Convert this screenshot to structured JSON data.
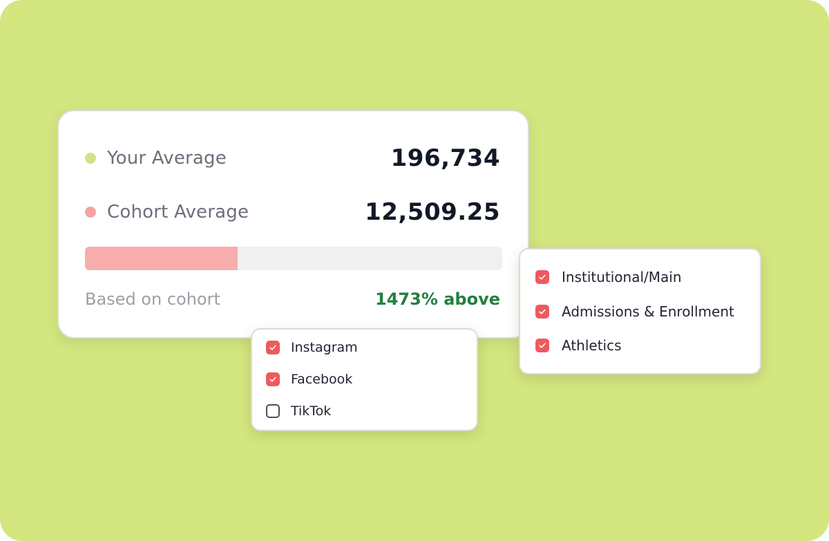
{
  "comparison": {
    "your_average": {
      "label": "Your Average",
      "value": "196,734",
      "dot_color": "#cfe38f"
    },
    "cohort_average": {
      "label": "Cohort Average",
      "value": "12,509.25",
      "dot_color": "#f6a3a3"
    },
    "progress": {
      "fraction": 0.366,
      "fill_color": "#f8adad",
      "track_color": "#eff0f1"
    },
    "footer_label": "Based on cohort",
    "delta_text": "1473% above",
    "delta_color": "#22803f"
  },
  "platform_filter": {
    "items": [
      {
        "label": "Instagram",
        "checked": true,
        "icon": "checkmark-icon"
      },
      {
        "label": "Facebook",
        "checked": true,
        "icon": "checkmark-icon"
      },
      {
        "label": "TikTok",
        "checked": false,
        "icon": ""
      }
    ]
  },
  "account_filter": {
    "items": [
      {
        "label": "Institutional/Main",
        "checked": true,
        "icon": "checkmark-icon"
      },
      {
        "label": "Admissions & Enrollment",
        "checked": true,
        "icon": "checkmark-icon"
      },
      {
        "label": "Athletics",
        "checked": true,
        "icon": "checkmark-icon"
      }
    ]
  },
  "colors": {
    "background": "#d3e67f",
    "checkbox_checked": "#ee5a5e",
    "checkbox_unchecked_border": "#4b4f59"
  }
}
